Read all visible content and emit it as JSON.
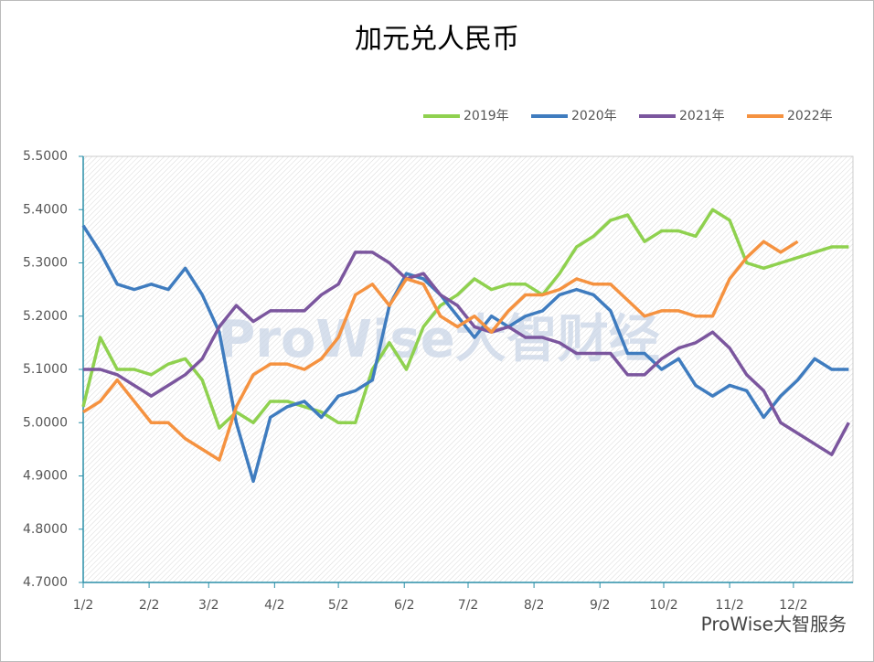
{
  "chart_data": {
    "type": "line",
    "title": "加元兑人民币",
    "x": [
      0,
      8,
      16,
      24,
      32,
      40,
      48,
      56,
      64,
      72,
      80,
      88,
      96,
      104,
      112,
      120,
      128,
      136,
      144,
      152,
      160,
      168,
      176,
      184,
      192,
      200,
      208,
      216,
      224,
      232,
      240,
      248,
      256,
      264,
      272,
      280,
      288,
      296,
      304,
      312,
      320,
      328,
      336,
      344,
      352,
      360
    ],
    "xlim": [
      0,
      362
    ],
    "xticks": [
      {
        "value": 0,
        "label": "1/2"
      },
      {
        "value": 31,
        "label": "2/2"
      },
      {
        "value": 59,
        "label": "3/2"
      },
      {
        "value": 90,
        "label": "4/2"
      },
      {
        "value": 120,
        "label": "5/2"
      },
      {
        "value": 151,
        "label": "6/2"
      },
      {
        "value": 181,
        "label": "7/2"
      },
      {
        "value": 212,
        "label": "8/2"
      },
      {
        "value": 243,
        "label": "9/2"
      },
      {
        "value": 273,
        "label": "10/2"
      },
      {
        "value": 304,
        "label": "11/2"
      },
      {
        "value": 334,
        "label": "12/2"
      }
    ],
    "ylim": [
      4.7,
      5.5
    ],
    "yticks": [
      {
        "value": 4.7,
        "label": "4.7000"
      },
      {
        "value": 4.8,
        "label": "4.8000"
      },
      {
        "value": 4.9,
        "label": "4.9000"
      },
      {
        "value": 5.0,
        "label": "5.0000"
      },
      {
        "value": 5.1,
        "label": "5.1000"
      },
      {
        "value": 5.2,
        "label": "5.2000"
      },
      {
        "value": 5.3,
        "label": "5.3000"
      },
      {
        "value": 5.4,
        "label": "5.4000"
      },
      {
        "value": 5.5,
        "label": "5.5000"
      }
    ],
    "series": [
      {
        "name": "2019年",
        "color": "#8fd14f",
        "values": [
          5.03,
          5.16,
          5.1,
          5.1,
          5.09,
          5.11,
          5.12,
          5.08,
          4.99,
          5.02,
          5.0,
          5.04,
          5.04,
          5.03,
          5.02,
          5.0,
          5.0,
          5.1,
          5.15,
          5.1,
          5.18,
          5.22,
          5.24,
          5.27,
          5.25,
          5.26,
          5.26,
          5.24,
          5.28,
          5.33,
          5.35,
          5.38,
          5.39,
          5.34,
          5.36,
          5.36,
          5.35,
          5.4,
          5.38,
          5.3,
          5.29,
          5.3,
          5.31,
          5.32,
          5.33,
          5.33
        ]
      },
      {
        "name": "2020年",
        "color": "#3f7cbf",
        "values": [
          5.37,
          5.32,
          5.26,
          5.25,
          5.26,
          5.25,
          5.29,
          5.24,
          5.17,
          5.0,
          4.89,
          5.01,
          5.03,
          5.04,
          5.01,
          5.05,
          5.06,
          5.08,
          5.22,
          5.28,
          5.27,
          5.24,
          5.2,
          5.16,
          5.2,
          5.18,
          5.2,
          5.21,
          5.24,
          5.25,
          5.24,
          5.21,
          5.13,
          5.13,
          5.1,
          5.12,
          5.07,
          5.05,
          5.07,
          5.06,
          5.01,
          5.05,
          5.08,
          5.12,
          5.1,
          5.1
        ]
      },
      {
        "name": "2021年",
        "color": "#7b569e",
        "values": [
          5.1,
          5.1,
          5.09,
          5.07,
          5.05,
          5.07,
          5.09,
          5.12,
          5.18,
          5.22,
          5.19,
          5.21,
          5.21,
          5.21,
          5.24,
          5.26,
          5.32,
          5.32,
          5.3,
          5.27,
          5.28,
          5.24,
          5.22,
          5.18,
          5.17,
          5.18,
          5.16,
          5.16,
          5.15,
          5.13,
          5.13,
          5.13,
          5.09,
          5.09,
          5.12,
          5.14,
          5.15,
          5.17,
          5.14,
          5.09,
          5.06,
          5.0,
          4.98,
          4.96,
          4.94,
          5.0
        ]
      },
      {
        "name": "2022年",
        "color": "#f59240",
        "values": [
          5.02,
          5.04,
          5.08,
          5.04,
          5.0,
          5.0,
          4.97,
          4.95,
          4.93,
          5.03,
          5.09,
          5.11,
          5.11,
          5.1,
          5.12,
          5.16,
          5.24,
          5.26,
          5.22,
          5.27,
          5.26,
          5.2,
          5.18,
          5.2,
          5.17,
          5.21,
          5.24,
          5.24,
          5.25,
          5.27,
          5.26,
          5.26,
          5.23,
          5.2,
          5.21,
          5.21,
          5.2,
          5.2,
          5.27,
          5.31,
          5.34,
          5.32,
          5.34,
          null,
          null,
          null
        ]
      }
    ],
    "watermark": "ProWise大智财经",
    "footer": "ProWise大智服务",
    "legend": "top-right",
    "hatched_background": true
  }
}
